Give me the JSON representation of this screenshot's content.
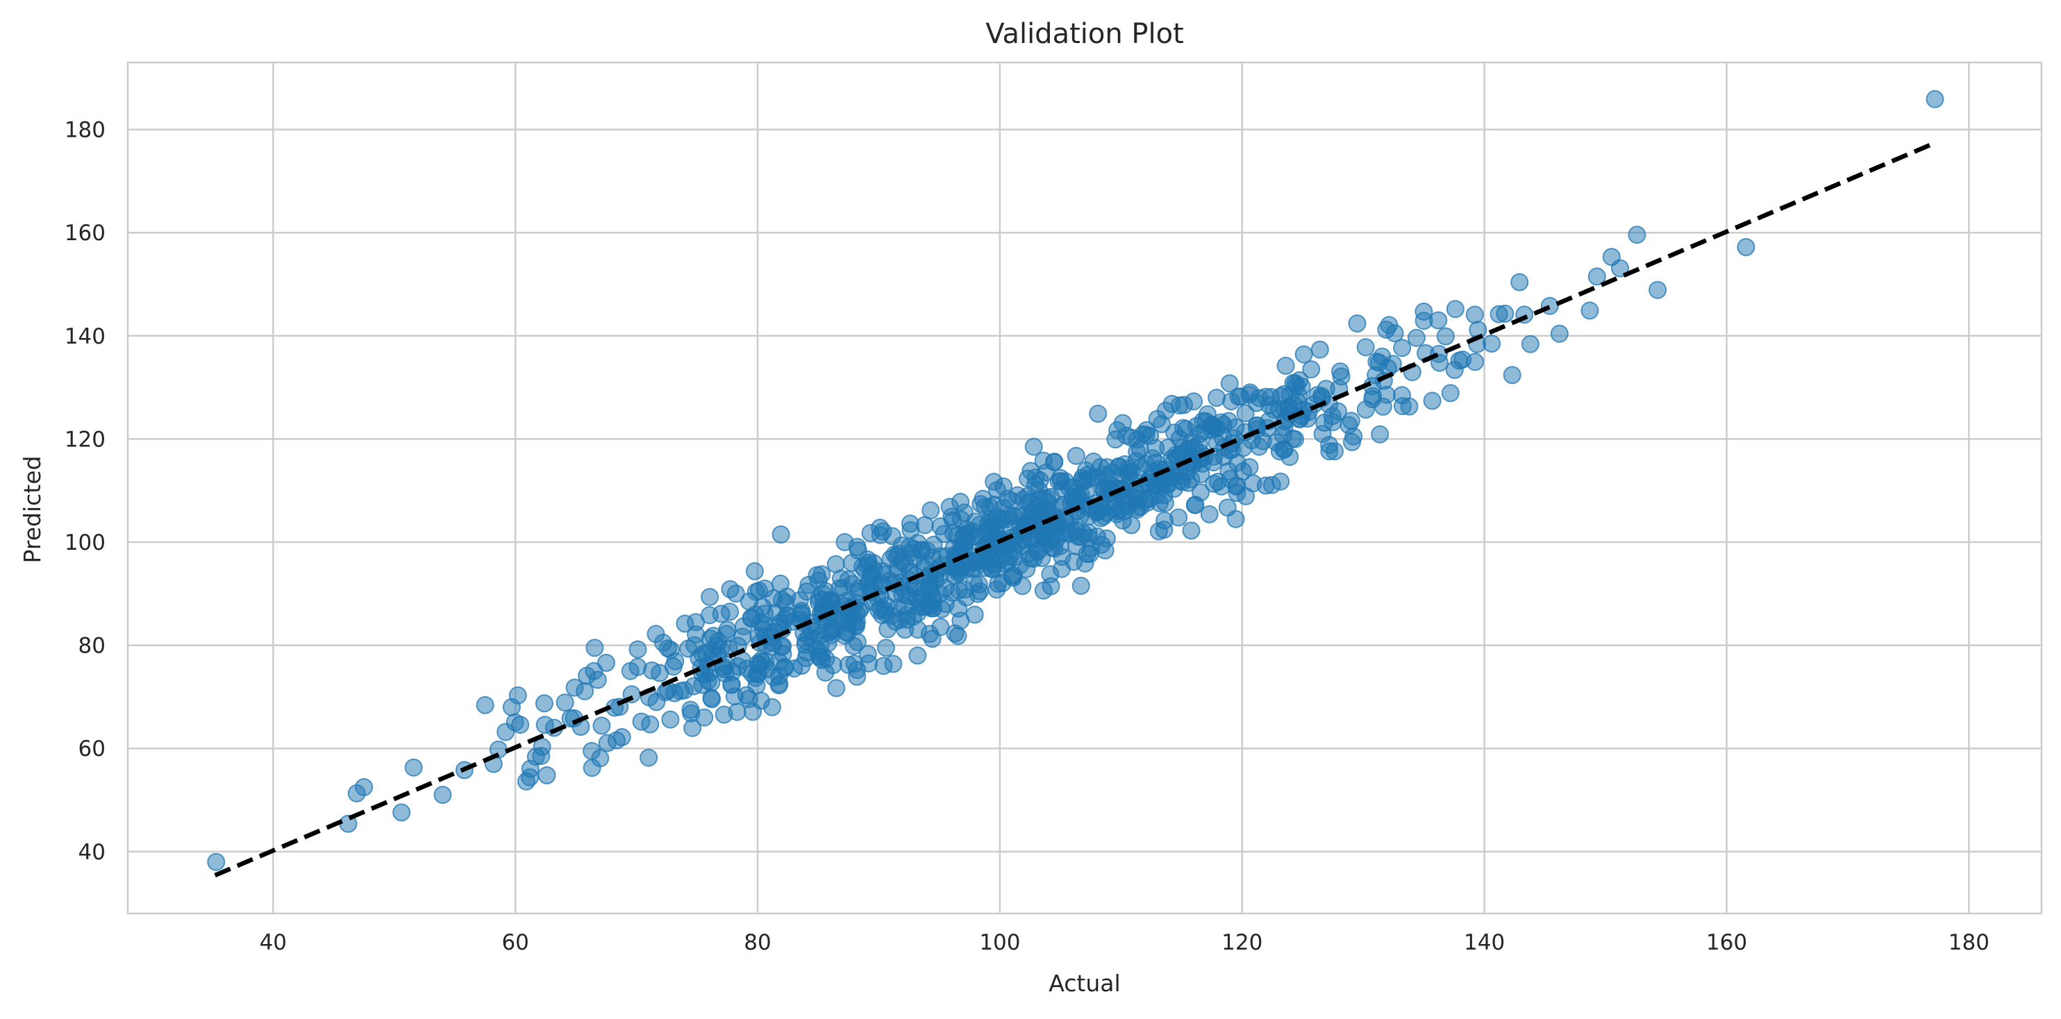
{
  "chart_data": {
    "type": "scatter",
    "title": "Validation Plot",
    "xlabel": "Actual",
    "ylabel": "Predicted",
    "xlim": [
      28,
      186
    ],
    "ylim": [
      28,
      193
    ],
    "x_ticks": [
      40,
      60,
      80,
      100,
      120,
      140,
      160,
      180
    ],
    "y_ticks": [
      40,
      60,
      80,
      100,
      120,
      140,
      160,
      180
    ],
    "grid": true,
    "legend": "none",
    "colors": {
      "points": "#1f77b4",
      "reference_line": "#000000",
      "grid": "#cccccc",
      "frame": "#cccccc"
    },
    "reference_line": {
      "style": "dashed",
      "from": [
        35.2,
        35.4
      ],
      "to": [
        177.0,
        177.2
      ]
    },
    "sample_seed": 42,
    "sample_count": 880,
    "points": [
      [
        35.3,
        38.0
      ],
      [
        46.2,
        45.4
      ],
      [
        46.9,
        51.3
      ],
      [
        47.5,
        52.5
      ],
      [
        50.6,
        47.6
      ],
      [
        51.6,
        56.3
      ],
      [
        54.0,
        51.0
      ],
      [
        55.8,
        55.8
      ],
      [
        57.5,
        68.4
      ],
      [
        58.2,
        57.0
      ],
      [
        58.6,
        59.8
      ],
      [
        59.2,
        63.2
      ],
      [
        59.7,
        68.0
      ],
      [
        60.4,
        64.6
      ],
      [
        60.9,
        53.6
      ],
      [
        61.2,
        54.4
      ],
      [
        61.7,
        58.4
      ],
      [
        62.2,
        60.3
      ],
      [
        62.6,
        54.8
      ],
      [
        63.2,
        64.0
      ],
      [
        64.1,
        68.9
      ],
      [
        64.9,
        71.8
      ],
      [
        65.4,
        64.2
      ],
      [
        65.9,
        74.1
      ],
      [
        66.3,
        59.5
      ],
      [
        66.8,
        73.3
      ],
      [
        67.0,
        58.1
      ],
      [
        67.5,
        76.6
      ],
      [
        68.2,
        67.9
      ],
      [
        68.8,
        62.2
      ],
      [
        69.6,
        70.5
      ],
      [
        70.1,
        75.8
      ],
      [
        70.4,
        65.2
      ],
      [
        71.0,
        58.2
      ],
      [
        71.6,
        82.2
      ],
      [
        72.2,
        80.5
      ],
      [
        72.8,
        65.6
      ],
      [
        73.2,
        76.9
      ],
      [
        74.0,
        84.2
      ],
      [
        74.9,
        84.5
      ],
      [
        75.6,
        66.0
      ],
      [
        76.1,
        81.3
      ],
      [
        77.0,
        86.1
      ],
      [
        77.5,
        83.0
      ],
      [
        78.1,
        70.1
      ],
      [
        79.3,
        88.5
      ],
      [
        79.6,
        67.1
      ],
      [
        80.1,
        90.6
      ],
      [
        80.6,
        91.0
      ],
      [
        81.2,
        68.0
      ],
      [
        81.8,
        72.5
      ],
      [
        82.3,
        88.3
      ],
      [
        83.0,
        75.5
      ],
      [
        84.2,
        91.7
      ],
      [
        84.9,
        93.6
      ],
      [
        85.6,
        90.5
      ],
      [
        86.5,
        71.7
      ],
      [
        87.2,
        100.0
      ],
      [
        88.2,
        73.9
      ],
      [
        89.1,
        78.3
      ],
      [
        90.1,
        102.8
      ],
      [
        90.4,
        76.0
      ],
      [
        91.2,
        76.4
      ],
      [
        92.6,
        103.6
      ],
      [
        93.8,
        103.3
      ],
      [
        95.2,
        87.0
      ],
      [
        96.3,
        82.3
      ],
      [
        97.1,
        90.8
      ],
      [
        98.6,
        108.4
      ],
      [
        99.5,
        111.7
      ],
      [
        100.3,
        110.8
      ],
      [
        101.7,
        103.2
      ],
      [
        102.3,
        112.3
      ],
      [
        102.8,
        118.5
      ],
      [
        103.6,
        115.8
      ],
      [
        104.5,
        115.6
      ],
      [
        105.1,
        94.8
      ],
      [
        106.1,
        96.2
      ],
      [
        107.2,
        97.7
      ],
      [
        108.1,
        124.9
      ],
      [
        108.4,
        99.5
      ],
      [
        109.7,
        121.7
      ],
      [
        110.9,
        120.2
      ],
      [
        112.4,
        120.6
      ],
      [
        113.6,
        104.2
      ],
      [
        114.2,
        126.8
      ],
      [
        115.2,
        126.6
      ],
      [
        116.0,
        127.3
      ],
      [
        117.3,
        105.4
      ],
      [
        117.9,
        128.0
      ],
      [
        118.3,
        110.8
      ],
      [
        119.1,
        127.3
      ],
      [
        119.6,
        115.4
      ],
      [
        120.3,
        108.9
      ],
      [
        120.9,
        111.4
      ],
      [
        121.4,
        118.5
      ],
      [
        122.6,
        125.7
      ],
      [
        123.1,
        117.6
      ],
      [
        123.6,
        134.2
      ],
      [
        124.4,
        130.8
      ],
      [
        125.1,
        136.4
      ],
      [
        125.7,
        133.5
      ],
      [
        126.6,
        127.9
      ],
      [
        127.2,
        117.6
      ],
      [
        128.1,
        133.1
      ],
      [
        128.8,
        122.7
      ],
      [
        129.2,
        120.5
      ],
      [
        129.5,
        142.4
      ],
      [
        130.2,
        137.8
      ],
      [
        130.8,
        128.3
      ],
      [
        131.3,
        134.8
      ],
      [
        131.9,
        141.2
      ],
      [
        132.6,
        140.5
      ],
      [
        133.2,
        128.5
      ],
      [
        133.8,
        126.3
      ],
      [
        134.4,
        139.6
      ],
      [
        135.0,
        144.7
      ],
      [
        135.7,
        127.4
      ],
      [
        136.2,
        143.0
      ],
      [
        136.8,
        139.9
      ],
      [
        137.2,
        128.9
      ],
      [
        137.6,
        145.2
      ],
      [
        138.2,
        135.4
      ],
      [
        139.4,
        138.4
      ],
      [
        140.6,
        138.5
      ],
      [
        141.2,
        144.2
      ],
      [
        141.7,
        144.3
      ],
      [
        142.3,
        132.4
      ],
      [
        142.9,
        150.4
      ],
      [
        143.3,
        144.1
      ],
      [
        143.8,
        138.4
      ],
      [
        145.4,
        145.8
      ],
      [
        146.2,
        140.4
      ],
      [
        148.7,
        144.9
      ],
      [
        149.3,
        151.5
      ],
      [
        150.5,
        155.3
      ],
      [
        151.2,
        153.1
      ],
      [
        152.6,
        159.6
      ],
      [
        154.3,
        148.9
      ],
      [
        161.6,
        157.2
      ],
      [
        177.2,
        185.9
      ]
    ]
  }
}
